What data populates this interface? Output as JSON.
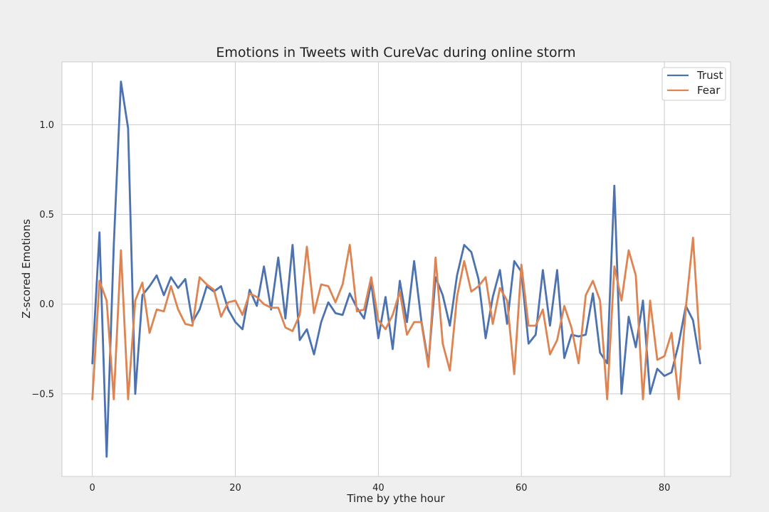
{
  "chart_data": {
    "type": "line",
    "title": "Emotions in Tweets with CureVac during online storm",
    "xlabel": "Time by ythe hour",
    "ylabel": "Z-scored Emotions",
    "xlim": [
      -4.25,
      89.25
    ],
    "ylim": [
      -0.96,
      1.35
    ],
    "xticks": [
      0,
      20,
      40,
      60,
      80
    ],
    "yticks": [
      -0.5,
      0.0,
      0.5,
      1.0
    ],
    "xtick_labels": [
      "0",
      "20",
      "40",
      "60",
      "80"
    ],
    "ytick_labels": [
      "−0.5",
      "0.0",
      "0.5",
      "1.0"
    ],
    "grid": true,
    "legend": "top-right",
    "x": [
      0,
      1,
      2,
      3,
      4,
      5,
      6,
      7,
      8,
      9,
      10,
      11,
      12,
      13,
      14,
      15,
      16,
      17,
      18,
      19,
      20,
      21,
      22,
      23,
      24,
      25,
      26,
      27,
      28,
      29,
      30,
      31,
      32,
      33,
      34,
      35,
      36,
      37,
      38,
      39,
      40,
      41,
      42,
      43,
      44,
      45,
      46,
      47,
      48,
      49,
      50,
      51,
      52,
      53,
      54,
      55,
      56,
      57,
      58,
      59,
      60,
      61,
      62,
      63,
      64,
      65,
      66,
      67,
      68,
      69,
      70,
      71,
      72,
      73,
      74,
      75,
      76,
      77,
      78,
      79,
      80,
      81,
      82,
      83,
      84,
      85
    ],
    "series": [
      {
        "name": "Trust",
        "color": "#4c72b0",
        "values": [
          -0.33,
          0.4,
          -0.85,
          0.33,
          1.24,
          0.98,
          -0.5,
          0.05,
          0.1,
          0.16,
          0.05,
          0.15,
          0.09,
          0.14,
          -0.1,
          -0.03,
          0.1,
          0.07,
          0.1,
          -0.03,
          -0.1,
          -0.14,
          0.08,
          -0.01,
          0.21,
          -0.03,
          0.26,
          -0.08,
          0.33,
          -0.2,
          -0.14,
          -0.28,
          -0.1,
          0.01,
          -0.05,
          -0.06,
          0.06,
          -0.02,
          -0.08,
          0.12,
          -0.19,
          0.04,
          -0.25,
          0.13,
          -0.1,
          0.24,
          -0.09,
          -0.33,
          0.15,
          0.05,
          -0.12,
          0.16,
          0.33,
          0.29,
          0.14,
          -0.19,
          0.04,
          0.19,
          -0.11,
          0.24,
          0.18,
          -0.22,
          -0.17,
          0.19,
          -0.12,
          0.19,
          -0.3,
          -0.17,
          -0.18,
          -0.17,
          0.06,
          -0.27,
          -0.33,
          0.66,
          -0.5,
          -0.07,
          -0.24,
          0.02,
          -0.5,
          -0.36,
          -0.4,
          -0.38,
          -0.22,
          -0.01,
          -0.09,
          -0.33
        ]
      },
      {
        "name": "Fear",
        "color": "#dd8452",
        "values": [
          -0.53,
          0.13,
          0.02,
          -0.53,
          0.3,
          -0.53,
          0.02,
          0.12,
          -0.16,
          -0.03,
          -0.04,
          0.1,
          -0.03,
          -0.11,
          -0.12,
          0.15,
          0.11,
          0.08,
          -0.07,
          0.01,
          0.02,
          -0.06,
          0.06,
          0.04,
          0.0,
          -0.02,
          -0.02,
          -0.13,
          -0.15,
          -0.06,
          0.32,
          -0.05,
          0.11,
          0.1,
          0.01,
          0.11,
          0.33,
          -0.04,
          -0.03,
          0.15,
          -0.09,
          -0.14,
          -0.06,
          0.07,
          -0.17,
          -0.1,
          -0.1,
          -0.35,
          0.26,
          -0.22,
          -0.37,
          0.04,
          0.24,
          0.07,
          0.1,
          0.15,
          -0.11,
          0.09,
          0.02,
          -0.39,
          0.22,
          -0.12,
          -0.12,
          -0.03,
          -0.28,
          -0.2,
          -0.01,
          -0.13,
          -0.33,
          0.05,
          0.13,
          0.02,
          -0.53,
          0.21,
          0.02,
          0.3,
          0.16,
          -0.53,
          0.02,
          -0.31,
          -0.29,
          -0.16,
          -0.53,
          -0.02,
          0.37,
          -0.25
        ]
      }
    ]
  }
}
